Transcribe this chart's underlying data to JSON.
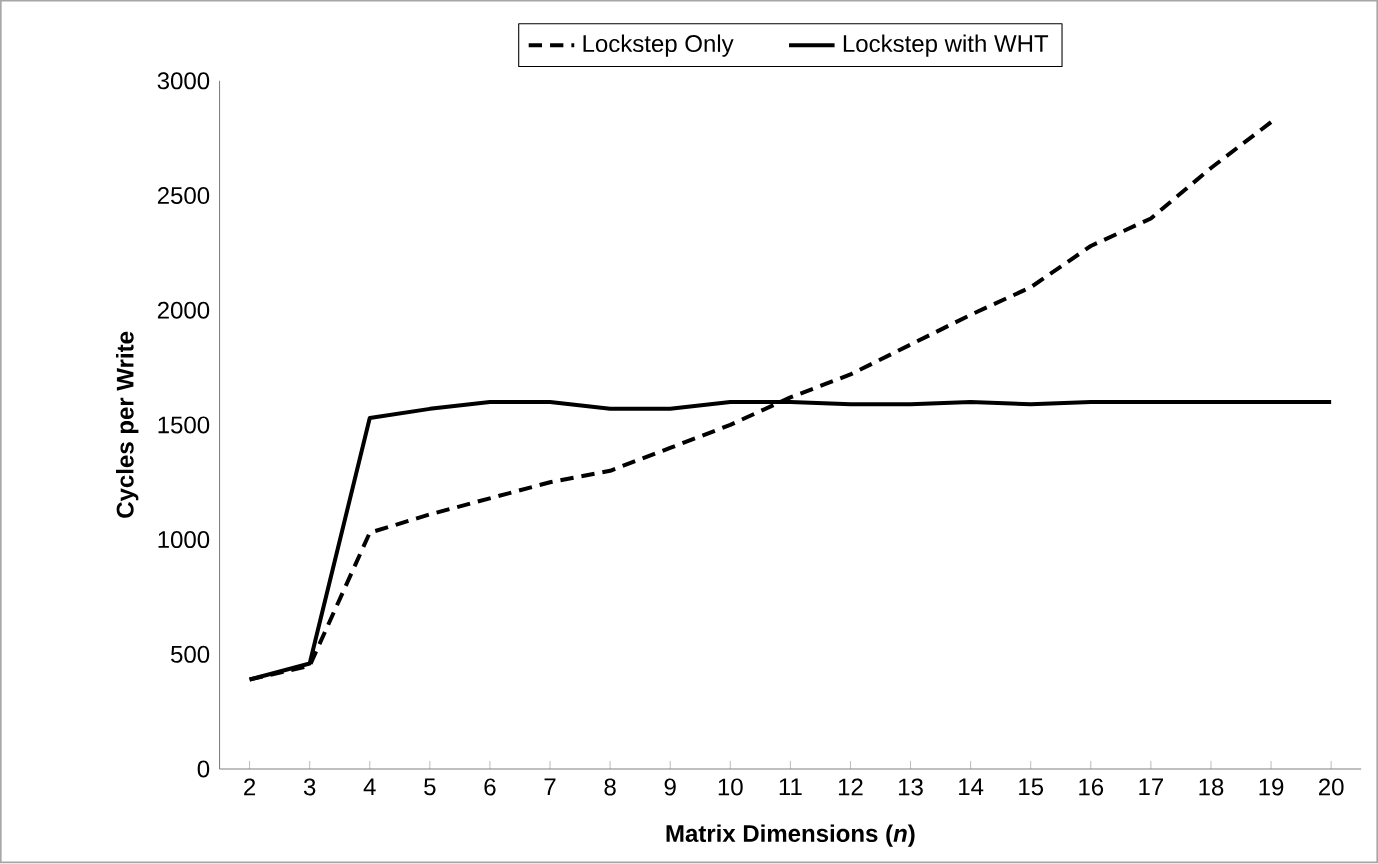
{
  "chart_data": {
    "type": "line",
    "xlabel": "Matrix Dimensions (*n*)",
    "ylabel": "Cycles per Write",
    "categories": [
      "2",
      "3",
      "4",
      "5",
      "6",
      "7",
      "8",
      "9",
      "10",
      "11",
      "12",
      "13",
      "14",
      "15",
      "16",
      "17",
      "18",
      "19",
      "20"
    ],
    "series": [
      {
        "name": "Lockstep Only",
        "color": "#000000",
        "line_style": "dashed",
        "values": [
          390,
          450,
          1030,
          1110,
          1180,
          1250,
          1300,
          1400,
          1500,
          1620,
          1720,
          1850,
          1980,
          2100,
          2280,
          2400,
          2620,
          2820,
          null
        ]
      },
      {
        "name": "Lockstep with WHT",
        "color": "#000000",
        "line_style": "solid",
        "values": [
          390,
          460,
          1530,
          1570,
          1600,
          1600,
          1570,
          1570,
          1600,
          1600,
          1590,
          1590,
          1600,
          1590,
          1600,
          1600,
          1600,
          1600,
          1600
        ]
      }
    ],
    "ylim": [
      0,
      3000
    ],
    "yticks": [
      0,
      500,
      1000,
      1500,
      2000,
      2500,
      3000
    ],
    "legend": "top",
    "grid": false,
    "marker": "none"
  }
}
